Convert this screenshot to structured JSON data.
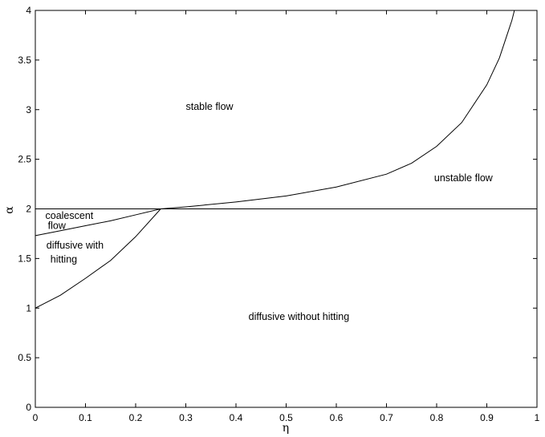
{
  "chart_data": {
    "type": "line",
    "title": "",
    "xlabel": "η",
    "ylabel": "α",
    "xlim": [
      0,
      1
    ],
    "ylim": [
      0,
      4
    ],
    "grid": false,
    "x_ticks": [
      "0",
      "0.1",
      "0.2",
      "0.3",
      "0.4",
      "0.5",
      "0.6",
      "0.7",
      "0.8",
      "0.9",
      "1"
    ],
    "y_ticks": [
      "0",
      "0.5",
      "1",
      "1.5",
      "2",
      "2.5",
      "3",
      "3.5",
      "4"
    ],
    "series": [
      {
        "id": "horizontal",
        "x": [
          0,
          1
        ],
        "y": [
          2,
          2
        ]
      },
      {
        "id": "upper-curve",
        "x": [
          0,
          0.05,
          0.1,
          0.15,
          0.2,
          0.25
        ],
        "y": [
          1.73,
          1.78,
          1.83,
          1.88,
          1.94,
          2.0
        ]
      },
      {
        "id": "lower-curve",
        "x": [
          0,
          0.05,
          0.1,
          0.15,
          0.2,
          0.25
        ],
        "y": [
          1.0,
          1.13,
          1.3,
          1.48,
          1.72,
          2.0
        ]
      },
      {
        "id": "rising-curve",
        "x": [
          0.25,
          0.3,
          0.4,
          0.5,
          0.6,
          0.7,
          0.75,
          0.8,
          0.85,
          0.9,
          0.925,
          0.95,
          0.955
        ],
        "y": [
          2.0,
          2.02,
          2.07,
          2.13,
          2.22,
          2.35,
          2.46,
          2.63,
          2.87,
          3.25,
          3.52,
          3.9,
          4.0
        ]
      }
    ],
    "annotations": [
      {
        "key": "stable",
        "text": "stable flow",
        "x": 0.3,
        "y": 3.0
      },
      {
        "key": "unstable",
        "text": "unstable flow",
        "x": 0.795,
        "y": 2.28
      },
      {
        "key": "coalescent1",
        "text": "coalescent",
        "x": 0.02,
        "y": 1.9
      },
      {
        "key": "coalescent2",
        "text": "flow",
        "x": 0.025,
        "y": 1.8
      },
      {
        "key": "diffhit1",
        "text": "diffusive with",
        "x": 0.022,
        "y": 1.6
      },
      {
        "key": "diffhit2",
        "text": "hitting",
        "x": 0.03,
        "y": 1.46
      },
      {
        "key": "diffnohit",
        "text": "diffusive without hitting",
        "x": 0.425,
        "y": 0.88
      }
    ]
  }
}
